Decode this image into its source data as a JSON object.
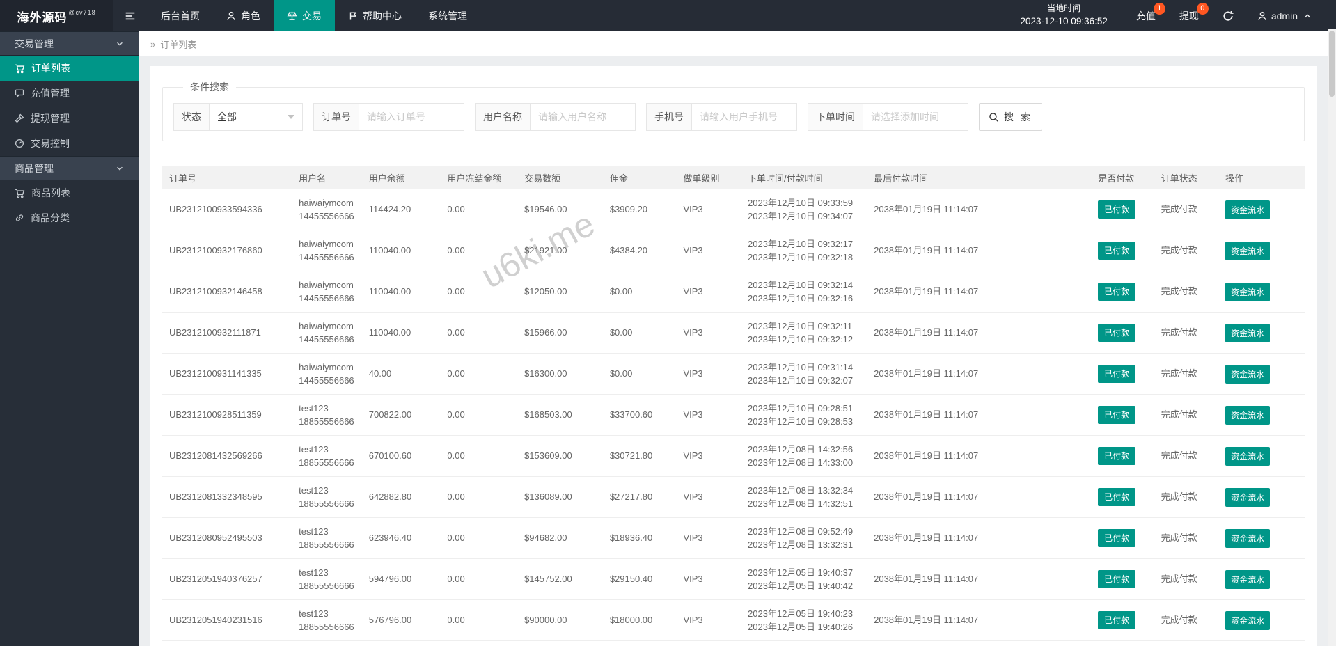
{
  "colors": {
    "accent": "#009688",
    "badge": "#ff5722",
    "topbar": "#262c36",
    "sidebar": "#272e38"
  },
  "brand": {
    "name": "海外源码",
    "tag": "@cv718"
  },
  "topnav": {
    "items": [
      {
        "label": "后台首页",
        "icon": null,
        "active": false
      },
      {
        "label": "角色",
        "icon": "user",
        "active": false
      },
      {
        "label": "交易",
        "icon": "scales",
        "active": true
      },
      {
        "label": "帮助中心",
        "icon": "flag",
        "active": false
      },
      {
        "label": "系统管理",
        "icon": null,
        "active": false
      }
    ],
    "time": {
      "label": "当地时间",
      "value": "2023-12-10 09:36:52"
    },
    "recharge": {
      "label": "充值",
      "badge": "1"
    },
    "withdraw": {
      "label": "提现",
      "badge": "0"
    },
    "user": {
      "name": "admin"
    }
  },
  "sidebar": {
    "groups": [
      {
        "label": "交易管理",
        "items": [
          {
            "label": "订单列表",
            "icon": "cart",
            "active": true
          },
          {
            "label": "充值管理",
            "icon": "message",
            "active": false
          },
          {
            "label": "提现管理",
            "icon": "gavel",
            "active": false
          },
          {
            "label": "交易控制",
            "icon": "gauge",
            "active": false
          }
        ]
      },
      {
        "label": "商品管理",
        "items": [
          {
            "label": "商品列表",
            "icon": "cart",
            "active": false
          },
          {
            "label": "商品分类",
            "icon": "link",
            "active": false
          }
        ]
      }
    ]
  },
  "breadcrumb": {
    "label": "订单列表"
  },
  "search": {
    "legend": "条件搜索",
    "fields": [
      {
        "label": "状态",
        "type": "select",
        "value": "全部"
      },
      {
        "label": "订单号",
        "type": "input",
        "placeholder": "请输入订单号"
      },
      {
        "label": "用户名称",
        "type": "input",
        "placeholder": "请输入用户名称"
      },
      {
        "label": "手机号",
        "type": "input",
        "placeholder": "请输入用户手机号"
      },
      {
        "label": "下单时间",
        "type": "input",
        "placeholder": "请选择添加时间"
      }
    ],
    "button_label": "搜 索"
  },
  "watermark": "u6ki.me",
  "table": {
    "headers": [
      "订单号",
      "用户名",
      "用户余额",
      "用户冻结金额",
      "交易数额",
      "佣金",
      "做单级别",
      "下单时间/付款时间",
      "最后付款时间",
      "是否付款",
      "订单状态",
      "操作"
    ],
    "rows": [
      {
        "order_no": "UB2312100933594336",
        "username": "haiwaiymcom",
        "phone": "14455556666",
        "balance": "114424.20",
        "frozen": "0.00",
        "amount": "$19546.00",
        "commission": "$3909.20",
        "level": "VIP3",
        "order_time": "2023年12月10日 09:33:59",
        "pay_time": "2023年12月10日 09:34:07",
        "last_pay_time": "2038年01月19日 11:14:07",
        "paid_label": "已付款",
        "status_label": "完成付款",
        "action_label": "资金流水"
      },
      {
        "order_no": "UB2312100932176860",
        "username": "haiwaiymcom",
        "phone": "14455556666",
        "balance": "110040.00",
        "frozen": "0.00",
        "amount": "$21921.00",
        "commission": "$4384.20",
        "level": "VIP3",
        "order_time": "2023年12月10日 09:32:17",
        "pay_time": "2023年12月10日 09:32:18",
        "last_pay_time": "2038年01月19日 11:14:07",
        "paid_label": "已付款",
        "status_label": "完成付款",
        "action_label": "资金流水"
      },
      {
        "order_no": "UB2312100932146458",
        "username": "haiwaiymcom",
        "phone": "14455556666",
        "balance": "110040.00",
        "frozen": "0.00",
        "amount": "$12050.00",
        "commission": "$0.00",
        "level": "VIP3",
        "order_time": "2023年12月10日 09:32:14",
        "pay_time": "2023年12月10日 09:32:16",
        "last_pay_time": "2038年01月19日 11:14:07",
        "paid_label": "已付款",
        "status_label": "完成付款",
        "action_label": "资金流水"
      },
      {
        "order_no": "UB2312100932111871",
        "username": "haiwaiymcom",
        "phone": "14455556666",
        "balance": "110040.00",
        "frozen": "0.00",
        "amount": "$15966.00",
        "commission": "$0.00",
        "level": "VIP3",
        "order_time": "2023年12月10日 09:32:11",
        "pay_time": "2023年12月10日 09:32:12",
        "last_pay_time": "2038年01月19日 11:14:07",
        "paid_label": "已付款",
        "status_label": "完成付款",
        "action_label": "资金流水"
      },
      {
        "order_no": "UB2312100931141335",
        "username": "haiwaiymcom",
        "phone": "14455556666",
        "balance": "40.00",
        "frozen": "0.00",
        "amount": "$16300.00",
        "commission": "$0.00",
        "level": "VIP3",
        "order_time": "2023年12月10日 09:31:14",
        "pay_time": "2023年12月10日 09:32:07",
        "last_pay_time": "2038年01月19日 11:14:07",
        "paid_label": "已付款",
        "status_label": "完成付款",
        "action_label": "资金流水"
      },
      {
        "order_no": "UB2312100928511359",
        "username": "test123",
        "phone": "18855556666",
        "balance": "700822.00",
        "frozen": "0.00",
        "amount": "$168503.00",
        "commission": "$33700.60",
        "level": "VIP3",
        "order_time": "2023年12月10日 09:28:51",
        "pay_time": "2023年12月10日 09:28:53",
        "last_pay_time": "2038年01月19日 11:14:07",
        "paid_label": "已付款",
        "status_label": "完成付款",
        "action_label": "资金流水"
      },
      {
        "order_no": "UB2312081432569266",
        "username": "test123",
        "phone": "18855556666",
        "balance": "670100.60",
        "frozen": "0.00",
        "amount": "$153609.00",
        "commission": "$30721.80",
        "level": "VIP3",
        "order_time": "2023年12月08日 14:32:56",
        "pay_time": "2023年12月08日 14:33:00",
        "last_pay_time": "2038年01月19日 11:14:07",
        "paid_label": "已付款",
        "status_label": "完成付款",
        "action_label": "资金流水"
      },
      {
        "order_no": "UB2312081332348595",
        "username": "test123",
        "phone": "18855556666",
        "balance": "642882.80",
        "frozen": "0.00",
        "amount": "$136089.00",
        "commission": "$27217.80",
        "level": "VIP3",
        "order_time": "2023年12月08日 13:32:34",
        "pay_time": "2023年12月08日 14:32:51",
        "last_pay_time": "2038年01月19日 11:14:07",
        "paid_label": "已付款",
        "status_label": "完成付款",
        "action_label": "资金流水"
      },
      {
        "order_no": "UB2312080952495503",
        "username": "test123",
        "phone": "18855556666",
        "balance": "623946.40",
        "frozen": "0.00",
        "amount": "$94682.00",
        "commission": "$18936.40",
        "level": "VIP3",
        "order_time": "2023年12月08日 09:52:49",
        "pay_time": "2023年12月08日 13:32:31",
        "last_pay_time": "2038年01月19日 11:14:07",
        "paid_label": "已付款",
        "status_label": "完成付款",
        "action_label": "资金流水"
      },
      {
        "order_no": "UB2312051940376257",
        "username": "test123",
        "phone": "18855556666",
        "balance": "594796.00",
        "frozen": "0.00",
        "amount": "$145752.00",
        "commission": "$29150.40",
        "level": "VIP3",
        "order_time": "2023年12月05日 19:40:37",
        "pay_time": "2023年12月05日 19:40:42",
        "last_pay_time": "2038年01月19日 11:14:07",
        "paid_label": "已付款",
        "status_label": "完成付款",
        "action_label": "资金流水"
      },
      {
        "order_no": "UB2312051940231516",
        "username": "test123",
        "phone": "18855556666",
        "balance": "576796.00",
        "frozen": "0.00",
        "amount": "$90000.00",
        "commission": "$18000.00",
        "level": "VIP3",
        "order_time": "2023年12月05日 19:40:23",
        "pay_time": "2023年12月05日 19:40:26",
        "last_pay_time": "2038年01月19日 11:14:07",
        "paid_label": "已付款",
        "status_label": "完成付款",
        "action_label": "资金流水"
      }
    ]
  }
}
